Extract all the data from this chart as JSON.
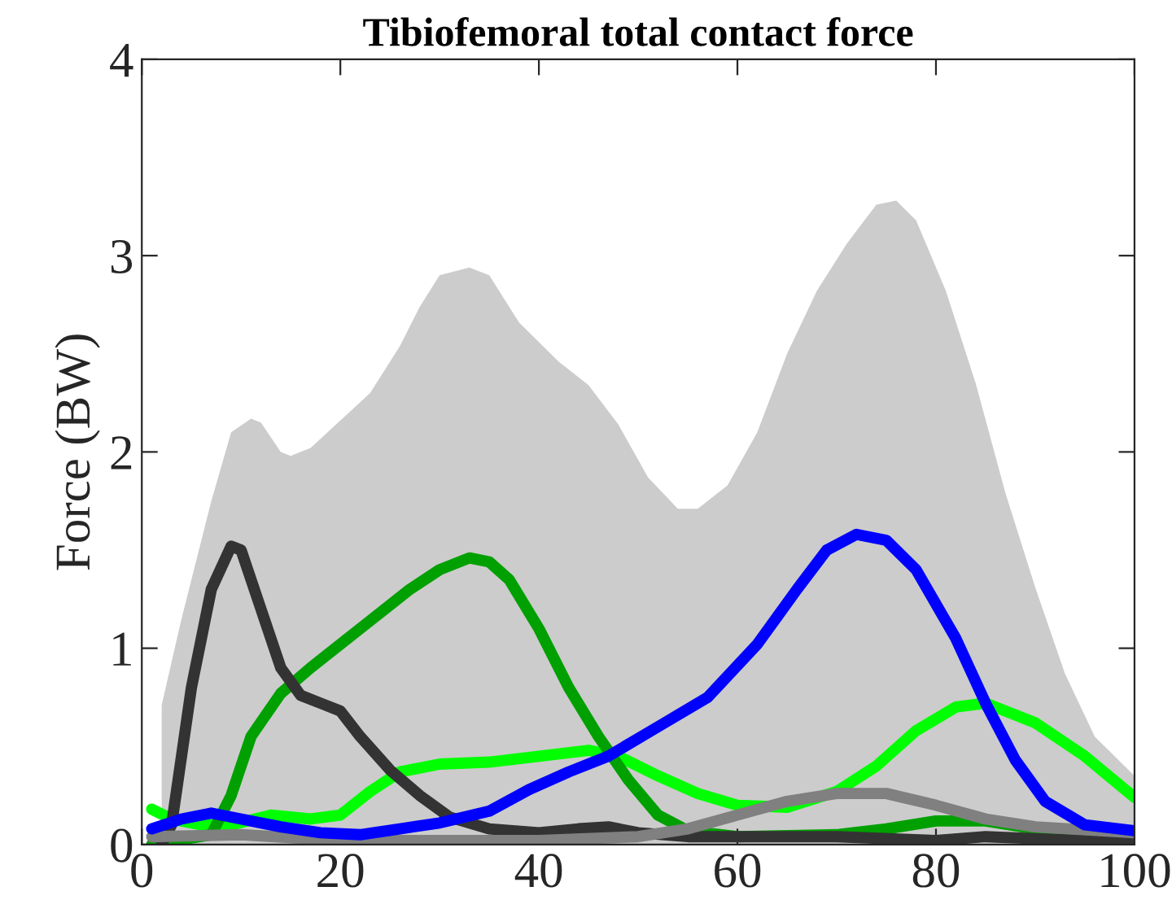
{
  "chart_data": {
    "type": "line",
    "title": "Tibiofemoral total contact force",
    "ylabel": "Force (BW)",
    "xlim": [
      0,
      100
    ],
    "ylim": [
      0,
      4
    ],
    "xticks": [
      0,
      20,
      40,
      60,
      80,
      100
    ],
    "yticks": [
      0,
      1,
      2,
      3,
      4
    ],
    "grid": false,
    "legend": false,
    "line_style": "solid",
    "marker": "none",
    "series": [
      {
        "type": "area",
        "color": "#cccccc",
        "x": [
          2,
          4,
          7,
          9,
          11,
          12,
          14,
          15,
          17,
          20,
          23,
          26,
          28,
          30,
          33,
          35,
          38,
          42,
          45,
          48,
          51,
          54,
          56,
          59,
          62,
          65,
          68,
          71,
          74,
          76,
          78,
          81,
          84,
          87,
          90,
          93,
          96,
          100
        ],
        "values": [
          0.71,
          1.15,
          1.75,
          2.1,
          2.17,
          2.15,
          2.0,
          1.98,
          2.02,
          2.16,
          2.3,
          2.54,
          2.74,
          2.9,
          2.94,
          2.9,
          2.66,
          2.46,
          2.34,
          2.14,
          1.87,
          1.71,
          1.71,
          1.83,
          2.1,
          2.5,
          2.82,
          3.06,
          3.26,
          3.28,
          3.18,
          2.82,
          2.35,
          1.79,
          1.31,
          0.87,
          0.55,
          0.35
        ]
      },
      {
        "color": "#00ff00",
        "x": [
          1,
          3,
          6,
          9,
          13,
          17,
          20,
          23,
          26,
          30,
          35,
          40,
          45,
          48,
          52,
          56,
          60,
          65,
          70,
          74,
          78,
          82,
          85,
          90,
          95,
          100
        ],
        "values": [
          0.18,
          0.13,
          0.1,
          0.1,
          0.15,
          0.13,
          0.15,
          0.27,
          0.37,
          0.41,
          0.42,
          0.45,
          0.48,
          0.45,
          0.35,
          0.26,
          0.2,
          0.19,
          0.27,
          0.4,
          0.58,
          0.7,
          0.72,
          0.62,
          0.45,
          0.24
        ]
      },
      {
        "color": "#00a000",
        "x": [
          1,
          7,
          9,
          11,
          14,
          17,
          20,
          24,
          27,
          30,
          33,
          35,
          37,
          40,
          43,
          46,
          49,
          52,
          55,
          60,
          70,
          75,
          80,
          85,
          90,
          100
        ],
        "values": [
          0,
          0.05,
          0.25,
          0.55,
          0.77,
          0.9,
          1.02,
          1.18,
          1.3,
          1.4,
          1.46,
          1.44,
          1.35,
          1.1,
          0.8,
          0.55,
          0.33,
          0.15,
          0.07,
          0.04,
          0.05,
          0.08,
          0.12,
          0.12,
          0.08,
          0.03
        ]
      },
      {
        "color": "#333333",
        "x": [
          2,
          3,
          5,
          7,
          9,
          10,
          12,
          14,
          16,
          18,
          20,
          22,
          25,
          28,
          31,
          35,
          40,
          44,
          47,
          50,
          55,
          70,
          80,
          85,
          90,
          100
        ],
        "values": [
          0,
          0.1,
          0.8,
          1.3,
          1.52,
          1.5,
          1.2,
          0.9,
          0.76,
          0.72,
          0.68,
          0.55,
          0.38,
          0.25,
          0.14,
          0.08,
          0.06,
          0.08,
          0.09,
          0.06,
          0.04,
          0.04,
          0.02,
          0.04,
          0.03,
          0.01
        ]
      },
      {
        "color": "#808080",
        "x": [
          1,
          10,
          20,
          40,
          50,
          55,
          60,
          65,
          70,
          75,
          80,
          85,
          90,
          100
        ],
        "values": [
          0.04,
          0.05,
          0.02,
          0.02,
          0.04,
          0.08,
          0.15,
          0.22,
          0.26,
          0.26,
          0.2,
          0.13,
          0.09,
          0.06
        ]
      },
      {
        "color": "#0000ff",
        "x": [
          1,
          4,
          7,
          10,
          14,
          18,
          22,
          26,
          30,
          35,
          39,
          43,
          47,
          52,
          57,
          62,
          66,
          69,
          72,
          75,
          78,
          82,
          85,
          88,
          91,
          95,
          100
        ],
        "values": [
          0.08,
          0.13,
          0.16,
          0.13,
          0.09,
          0.06,
          0.05,
          0.08,
          0.11,
          0.17,
          0.28,
          0.37,
          0.45,
          0.6,
          0.75,
          1.02,
          1.3,
          1.5,
          1.58,
          1.55,
          1.4,
          1.05,
          0.72,
          0.43,
          0.22,
          0.1,
          0.07
        ]
      }
    ]
  }
}
